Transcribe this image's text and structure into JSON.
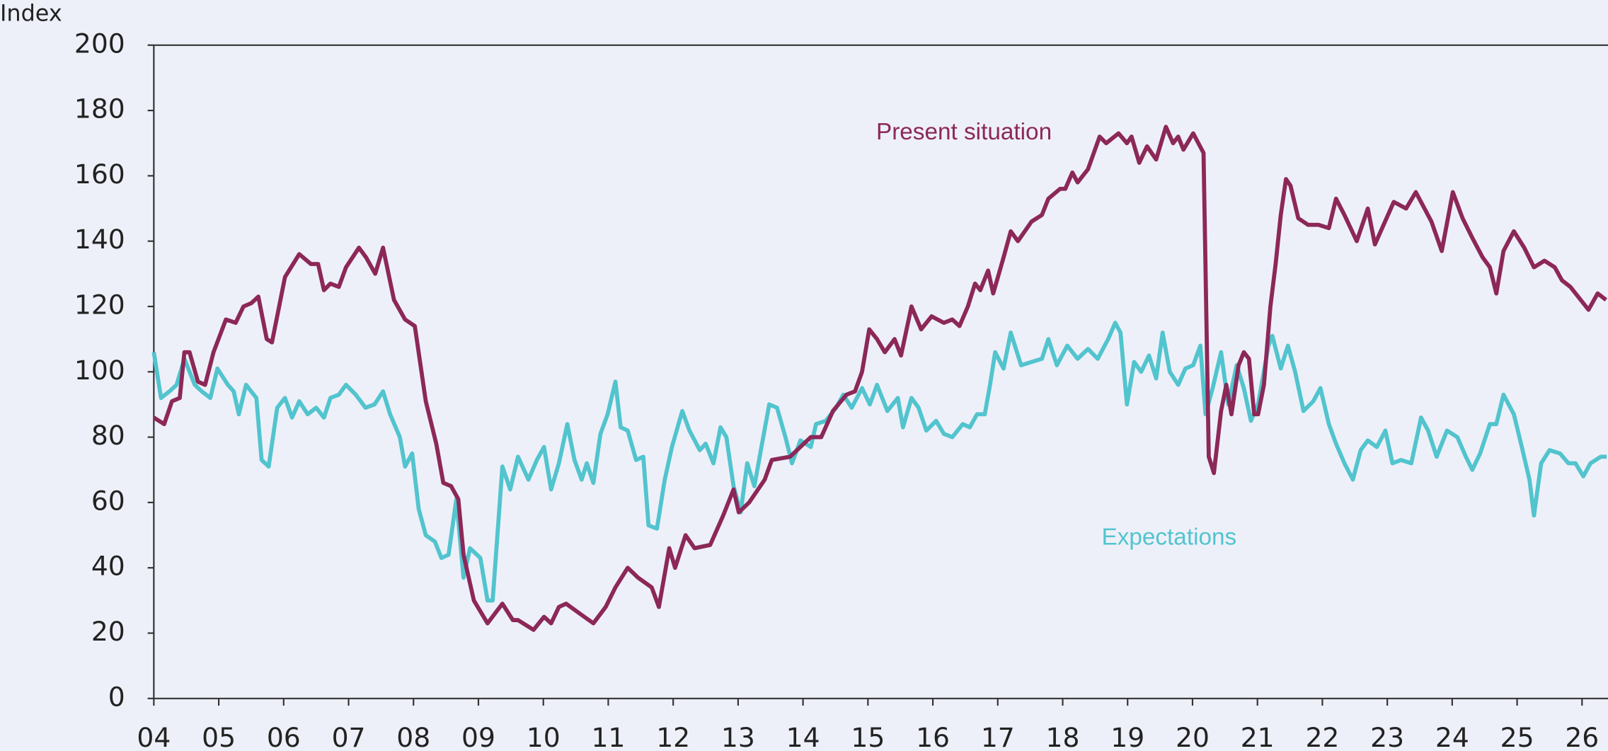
{
  "chart_data": {
    "type": "line",
    "y_label": "Index",
    "xlim": [
      2004,
      2026.4
    ],
    "xticks": [
      {
        "value": 2004,
        "label": "04"
      },
      {
        "value": 2005,
        "label": "05"
      },
      {
        "value": 2006,
        "label": "06"
      },
      {
        "value": 2007,
        "label": "07"
      },
      {
        "value": 2008,
        "label": "08"
      },
      {
        "value": 2009,
        "label": "09"
      },
      {
        "value": 2010,
        "label": "10"
      },
      {
        "value": 2011,
        "label": "11"
      },
      {
        "value": 2012,
        "label": "12"
      },
      {
        "value": 2013,
        "label": "13"
      },
      {
        "value": 2014,
        "label": "14"
      },
      {
        "value": 2015,
        "label": "15"
      },
      {
        "value": 2016,
        "label": "16"
      },
      {
        "value": 2017,
        "label": "17"
      },
      {
        "value": 2018,
        "label": "18"
      },
      {
        "value": 2019,
        "label": "19"
      },
      {
        "value": 2020,
        "label": "20"
      },
      {
        "value": 2021,
        "label": "21"
      },
      {
        "value": 2022,
        "label": "22"
      },
      {
        "value": 2023,
        "label": "23"
      },
      {
        "value": 2024,
        "label": "24"
      },
      {
        "value": 2025,
        "label": "25"
      },
      {
        "value": 2026,
        "label": "26"
      }
    ],
    "ylim": [
      0,
      200
    ],
    "yticks": [
      0,
      20,
      40,
      60,
      80,
      100,
      120,
      140,
      160,
      180,
      200
    ],
    "series": [
      {
        "name": "Present situation",
        "color": "#8c2858",
        "x": [
          2004.0,
          2004.16,
          2004.28,
          2004.4,
          2004.47,
          2004.55,
          2004.68,
          2004.79,
          2004.92,
          2005.11,
          2005.26,
          2005.38,
          2005.5,
          2005.61,
          2005.74,
          2005.82,
          2005.93,
          2006.02,
          2006.24,
          2006.42,
          2006.53,
          2006.62,
          2006.72,
          2006.85,
          2006.96,
          2007.16,
          2007.27,
          2007.41,
          2007.53,
          2007.7,
          2007.87,
          2008.02,
          2008.19,
          2008.35,
          2008.46,
          2008.58,
          2008.69,
          2008.77,
          2008.93,
          2009.14,
          2009.37,
          2009.53,
          2009.61,
          2009.85,
          2010.01,
          2010.12,
          2010.24,
          2010.35,
          2010.56,
          2010.77,
          2010.96,
          2011.11,
          2011.3,
          2011.46,
          2011.67,
          2011.78,
          2011.94,
          2012.03,
          2012.19,
          2012.33,
          2012.57,
          2012.77,
          2012.93,
          2013.01,
          2013.17,
          2013.41,
          2013.52,
          2013.8,
          2014.12,
          2014.28,
          2014.46,
          2014.67,
          2014.8,
          2014.91,
          2015.02,
          2015.14,
          2015.26,
          2015.41,
          2015.51,
          2015.67,
          2015.82,
          2015.98,
          2016.17,
          2016.3,
          2016.41,
          2016.54,
          2016.65,
          2016.73,
          2016.85,
          2016.93,
          2017.09,
          2017.2,
          2017.31,
          2017.52,
          2017.68,
          2017.78,
          2017.96,
          2018.04,
          2018.15,
          2018.23,
          2018.39,
          2018.57,
          2018.67,
          2018.86,
          2018.99,
          2019.06,
          2019.18,
          2019.3,
          2019.44,
          2019.59,
          2019.7,
          2019.78,
          2019.86,
          2020.01,
          2020.17,
          2020.25,
          2020.33,
          2020.44,
          2020.52,
          2020.6,
          2020.71,
          2020.79,
          2020.87,
          2020.95,
          2021.01,
          2021.1,
          2021.2,
          2021.28,
          2021.36,
          2021.44,
          2021.51,
          2021.63,
          2021.78,
          2021.94,
          2022.1,
          2022.21,
          2022.34,
          2022.53,
          2022.7,
          2022.81,
          2023.1,
          2023.29,
          2023.44,
          2023.68,
          2023.84,
          2024.01,
          2024.16,
          2024.31,
          2024.47,
          2024.58,
          2024.68,
          2024.79,
          2024.95,
          2025.11,
          2025.26,
          2025.42,
          2025.58,
          2025.69,
          2025.82,
          2026.1,
          2026.24,
          2026.37
        ],
        "values": [
          86,
          84,
          91,
          92,
          106,
          106,
          97,
          96,
          106,
          116,
          115,
          120,
          121,
          123,
          110,
          109,
          120,
          129,
          136,
          133,
          133,
          125,
          127,
          126,
          132,
          138,
          135,
          130,
          138,
          122,
          116,
          114,
          91,
          78,
          66,
          65,
          61,
          44,
          30,
          23,
          29,
          24,
          24,
          21,
          25,
          23,
          28,
          29,
          26,
          23,
          28,
          34,
          40,
          37,
          34,
          28,
          46,
          40,
          50,
          46,
          47,
          56,
          64,
          57,
          60,
          67,
          73,
          74,
          80,
          80,
          88,
          93,
          94,
          100,
          113,
          110,
          106,
          110,
          105,
          120,
          113,
          117,
          115,
          116,
          114,
          120,
          127,
          125,
          131,
          124,
          135,
          143,
          140,
          146,
          148,
          153,
          156,
          156,
          161,
          158,
          162,
          172,
          170,
          173,
          170,
          172,
          164,
          169,
          165,
          175,
          170,
          172,
          168,
          173,
          167,
          74,
          69,
          88,
          96,
          87,
          102,
          106,
          104,
          87,
          87,
          96,
          120,
          133,
          148,
          159,
          157,
          147,
          145,
          145,
          144,
          153,
          148,
          140,
          150,
          139,
          152,
          150,
          155,
          146,
          137,
          155,
          147,
          141,
          135,
          132,
          124,
          137,
          143,
          138,
          132,
          134,
          132,
          128,
          126,
          119,
          124,
          122
        ]
      },
      {
        "name": "Expectations",
        "color": "#52c4ce",
        "x": [
          2004.0,
          2004.11,
          2004.24,
          2004.35,
          2004.47,
          2004.63,
          2004.74,
          2004.87,
          2004.98,
          2005.14,
          2005.23,
          2005.31,
          2005.42,
          2005.58,
          2005.66,
          2005.77,
          2005.9,
          2006.02,
          2006.13,
          2006.24,
          2006.37,
          2006.5,
          2006.62,
          2006.72,
          2006.85,
          2006.96,
          2007.11,
          2007.26,
          2007.4,
          2007.53,
          2007.64,
          2007.79,
          2007.87,
          2007.98,
          2008.08,
          2008.19,
          2008.33,
          2008.43,
          2008.54,
          2008.66,
          2008.77,
          2008.87,
          2009.03,
          2009.14,
          2009.22,
          2009.37,
          2009.49,
          2009.61,
          2009.77,
          2009.9,
          2010.01,
          2010.12,
          2010.24,
          2010.37,
          2010.48,
          2010.59,
          2010.67,
          2010.77,
          2010.88,
          2010.99,
          2011.11,
          2011.19,
          2011.3,
          2011.43,
          2011.54,
          2011.62,
          2011.75,
          2011.87,
          2011.98,
          2012.14,
          2012.25,
          2012.41,
          2012.5,
          2012.62,
          2012.73,
          2012.82,
          2012.93,
          2013.04,
          2013.14,
          2013.25,
          2013.36,
          2013.48,
          2013.6,
          2013.73,
          2013.83,
          2013.96,
          2014.12,
          2014.2,
          2014.35,
          2014.51,
          2014.62,
          2014.75,
          2014.91,
          2015.03,
          2015.14,
          2015.3,
          2015.46,
          2015.54,
          2015.67,
          2015.78,
          2015.9,
          2016.05,
          2016.17,
          2016.3,
          2016.46,
          2016.57,
          2016.68,
          2016.8,
          2016.88,
          2016.96,
          2017.09,
          2017.2,
          2017.36,
          2017.52,
          2017.68,
          2017.78,
          2017.91,
          2018.07,
          2018.23,
          2018.39,
          2018.54,
          2018.7,
          2018.81,
          2018.89,
          2018.99,
          2019.1,
          2019.21,
          2019.33,
          2019.44,
          2019.54,
          2019.65,
          2019.78,
          2019.89,
          2020.01,
          2020.12,
          2020.2,
          2020.31,
          2020.44,
          2020.55,
          2020.68,
          2020.79,
          2020.9,
          2021.01,
          2021.17,
          2021.23,
          2021.36,
          2021.47,
          2021.58,
          2021.71,
          2021.86,
          2021.97,
          2022.1,
          2022.21,
          2022.34,
          2022.47,
          2022.59,
          2022.7,
          2022.84,
          2022.97,
          2023.08,
          2023.21,
          2023.37,
          2023.52,
          2023.63,
          2023.76,
          2023.92,
          2024.08,
          2024.21,
          2024.31,
          2024.43,
          2024.58,
          2024.68,
          2024.79,
          2024.95,
          2025.06,
          2025.19,
          2025.26,
          2025.37,
          2025.5,
          2025.66,
          2025.79,
          2025.9,
          2026.02,
          2026.13,
          2026.29,
          2026.38
        ],
        "values": [
          106,
          92,
          94,
          96,
          104,
          96,
          94,
          92,
          101,
          96,
          94,
          87,
          96,
          92,
          73,
          71,
          89,
          92,
          86,
          91,
          87,
          89,
          86,
          92,
          93,
          96,
          93,
          89,
          90,
          94,
          87,
          80,
          71,
          75,
          58,
          50,
          48,
          43,
          44,
          61,
          37,
          46,
          43,
          30,
          30,
          71,
          64,
          74,
          67,
          73,
          77,
          64,
          72,
          84,
          73,
          67,
          72,
          66,
          81,
          87,
          97,
          83,
          82,
          73,
          74,
          53,
          52,
          67,
          77,
          88,
          82,
          76,
          78,
          72,
          83,
          80,
          65,
          57,
          72,
          65,
          77,
          90,
          89,
          80,
          72,
          79,
          77,
          84,
          85,
          89,
          93,
          89,
          95,
          90,
          96,
          88,
          92,
          83,
          92,
          89,
          82,
          85,
          81,
          80,
          84,
          83,
          87,
          87,
          96,
          106,
          101,
          112,
          102,
          103,
          104,
          110,
          102,
          108,
          104,
          107,
          104,
          110,
          115,
          112,
          90,
          103,
          100,
          105,
          98,
          112,
          100,
          96,
          101,
          102,
          108,
          87,
          95,
          106,
          90,
          102,
          95,
          85,
          90,
          108,
          111,
          101,
          108,
          100,
          88,
          91,
          95,
          84,
          78,
          72,
          67,
          76,
          79,
          77,
          82,
          72,
          73,
          72,
          86,
          82,
          74,
          82,
          80,
          74,
          70,
          75,
          84,
          84,
          93,
          87,
          78,
          67,
          56,
          72,
          76,
          75,
          72,
          72,
          68,
          72,
          74,
          74
        ]
      }
    ],
    "annotations": [
      "Present situation",
      "Expectations"
    ]
  }
}
